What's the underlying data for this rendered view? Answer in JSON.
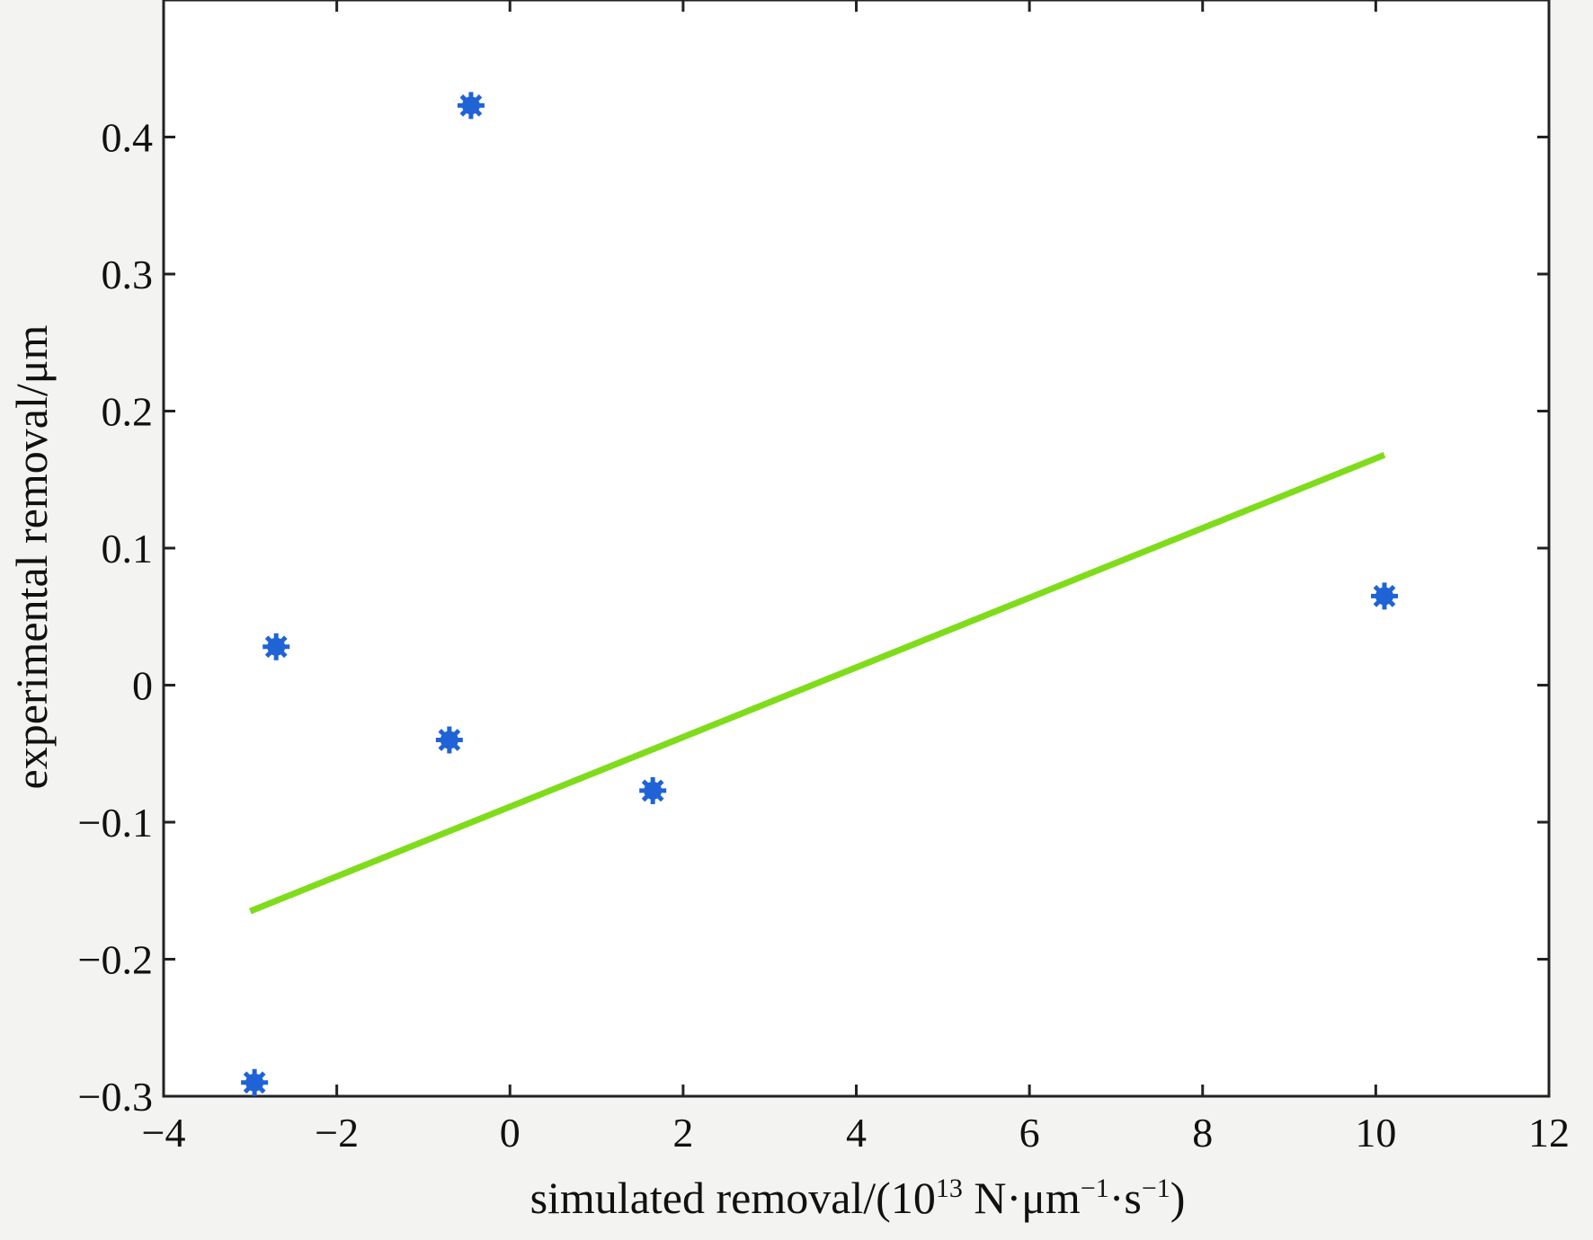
{
  "chart_data": {
    "type": "scatter",
    "xlabel": {
      "base": "simulated removal/(10",
      "exp1": "13",
      "mid1": " N·μm",
      "exp2": "−1",
      "mid2": "·s",
      "exp3": "−1",
      "end": ")"
    },
    "ylabel": "experimental removal/μm",
    "xlim": [
      -4,
      12
    ],
    "ylim": [
      -0.3,
      0.5
    ],
    "xticks": [
      -4,
      -2,
      0,
      2,
      4,
      6,
      8,
      10,
      12
    ],
    "xtick_labels": [
      "−4",
      "−2",
      "0",
      "2",
      "4",
      "6",
      "8",
      "10",
      "12"
    ],
    "yticks": [
      -0.3,
      -0.2,
      -0.1,
      0,
      0.1,
      0.2,
      0.3,
      0.4
    ],
    "ytick_labels": [
      "−0.3",
      "−0.2",
      "−0.1",
      "0",
      "0.1",
      "0.2",
      "0.3",
      "0.4"
    ],
    "grid": false,
    "series": [
      {
        "kind": "points",
        "marker": "asterisk",
        "color": "#1f63d6",
        "x": [
          -2.95,
          -2.7,
          -0.7,
          -0.45,
          1.65,
          10.1
        ],
        "y": [
          -0.29,
          0.028,
          -0.04,
          0.423,
          -0.077,
          0.065
        ]
      },
      {
        "kind": "fit-line",
        "color": "#7fdc1a",
        "x": [
          -3.0,
          10.1
        ],
        "y": [
          -0.165,
          0.168
        ]
      }
    ]
  }
}
